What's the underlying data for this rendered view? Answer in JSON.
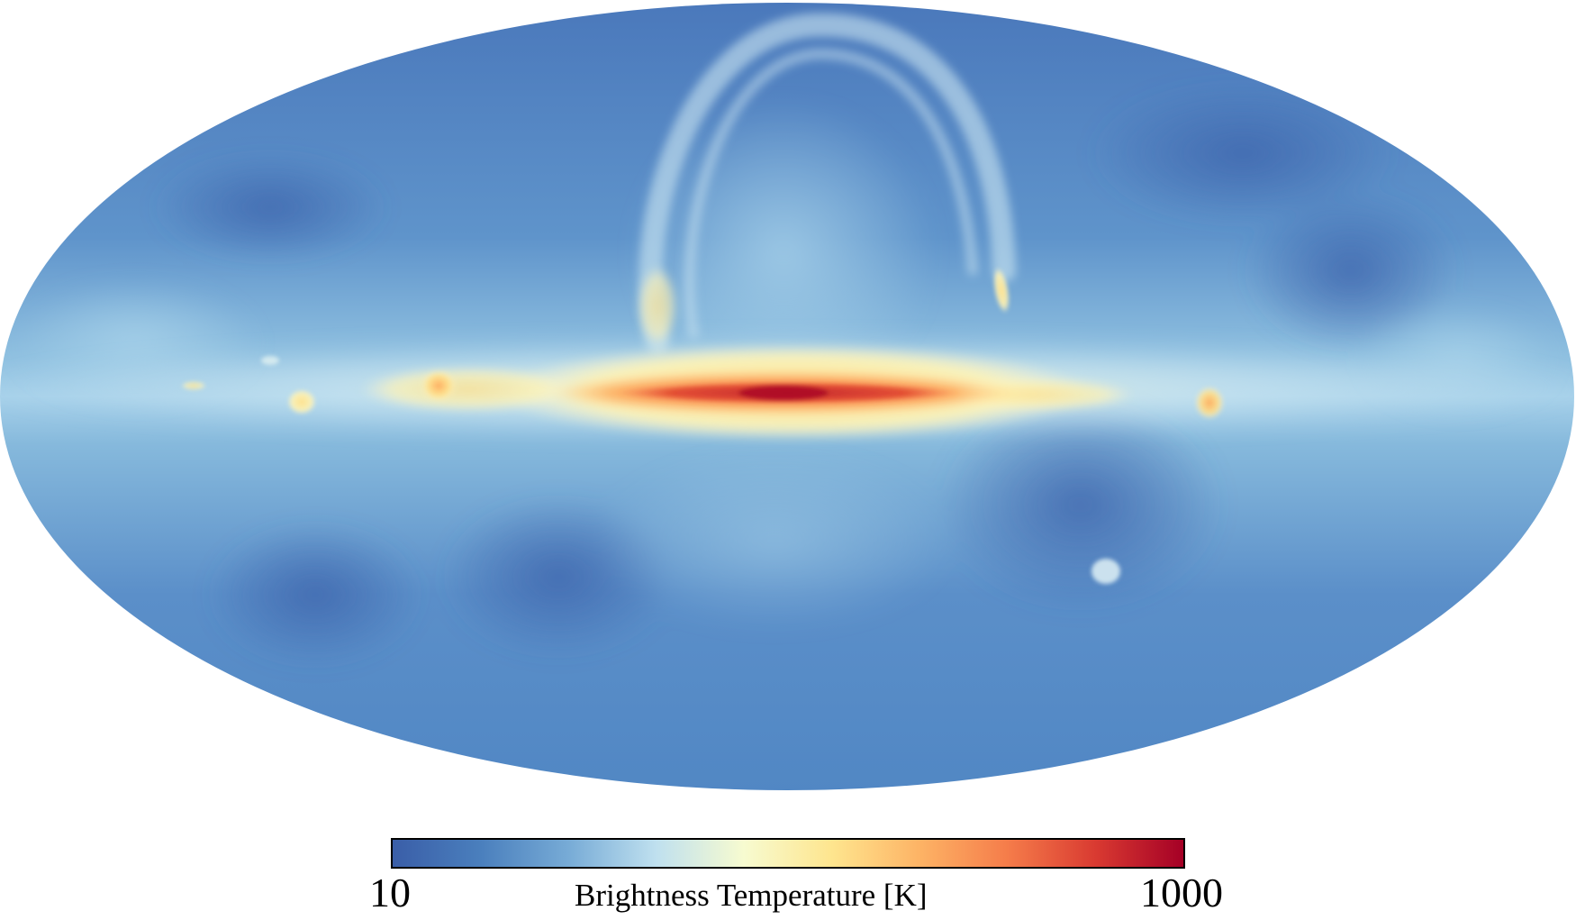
{
  "map": {
    "projection": "mollweide",
    "colormap": [
      "#3a5ea8",
      "#4a7fbd",
      "#77abd6",
      "#bfe0ef",
      "#f7fbd0",
      "#fee58e",
      "#fdb365",
      "#f57c4a",
      "#d93a31",
      "#a50026"
    ]
  },
  "colorbar": {
    "min_label": "10",
    "max_label": "1000",
    "title": "Brightness Temperature [K]",
    "scale": "log",
    "range": [
      10,
      1000
    ]
  }
}
